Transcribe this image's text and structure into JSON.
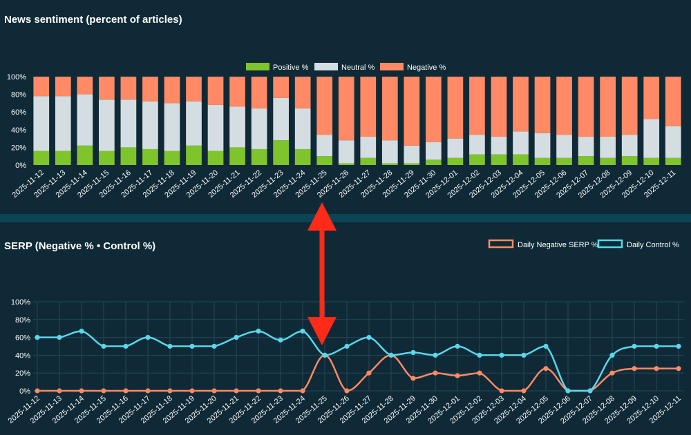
{
  "chart_data": [
    {
      "type": "bar",
      "stacked": true,
      "title": "News sentiment (percent of articles)",
      "categories": [
        "2025-11-12",
        "2025-11-13",
        "2025-11-14",
        "2025-11-15",
        "2025-11-16",
        "2025-11-17",
        "2025-11-18",
        "2025-11-19",
        "2025-11-20",
        "2025-11-21",
        "2025-11-22",
        "2025-11-23",
        "2025-11-24",
        "2025-11-25",
        "2025-11-26",
        "2025-11-27",
        "2025-11-28",
        "2025-11-29",
        "2025-11-30",
        "2025-12-01",
        "2025-12-02",
        "2025-12-03",
        "2025-12-04",
        "2025-12-05",
        "2025-12-06",
        "2025-12-07",
        "2025-12-08",
        "2025-12-09",
        "2025-12-10",
        "2025-12-11"
      ],
      "series": [
        {
          "name": "Positive %",
          "color": "#7ec42a",
          "values": [
            16,
            16,
            22,
            16,
            20,
            18,
            16,
            22,
            16,
            20,
            18,
            28,
            18,
            10,
            2,
            8,
            2,
            2,
            6,
            8,
            12,
            12,
            12,
            8,
            8,
            10,
            8,
            10,
            8,
            8
          ]
        },
        {
          "name": "Neutral %",
          "color": "#d3dde2",
          "values": [
            62,
            62,
            58,
            58,
            54,
            54,
            54,
            50,
            52,
            46,
            46,
            48,
            46,
            24,
            26,
            24,
            26,
            20,
            20,
            22,
            22,
            20,
            26,
            28,
            26,
            22,
            24,
            24,
            44,
            36
          ]
        },
        {
          "name": "Negative %",
          "color": "#ff8a65",
          "values": [
            22,
            22,
            20,
            26,
            26,
            28,
            30,
            28,
            32,
            34,
            36,
            24,
            36,
            66,
            72,
            68,
            72,
            78,
            74,
            70,
            66,
            68,
            62,
            64,
            66,
            68,
            68,
            66,
            48,
            56
          ]
        }
      ],
      "ylim": [
        0,
        100
      ],
      "yticks": [
        "0%",
        "20%",
        "40%",
        "60%",
        "80%",
        "100%"
      ],
      "legend": "top-center",
      "grid": false
    },
    {
      "type": "line",
      "title": "SERP (Negative % • Control %)",
      "categories": [
        "2025-11-12",
        "2025-11-13",
        "2025-11-14",
        "2025-11-15",
        "2025-11-16",
        "2025-11-17",
        "2025-11-18",
        "2025-11-19",
        "2025-11-20",
        "2025-11-21",
        "2025-11-22",
        "2025-11-23",
        "2025-11-24",
        "2025-11-25",
        "2025-11-26",
        "2025-11-27",
        "2025-11-28",
        "2025-11-29",
        "2025-11-30",
        "2025-12-01",
        "2025-12-02",
        "2025-12-03",
        "2025-12-04",
        "2025-12-05",
        "2025-12-06",
        "2025-12-07",
        "2025-12-08",
        "2025-12-09",
        "2025-12-10",
        "2025-12-11"
      ],
      "series": [
        {
          "name": "Daily Negative SERP %",
          "color": "#ff8a65",
          "values": [
            0,
            0,
            0,
            0,
            0,
            0,
            0,
            0,
            0,
            0,
            0,
            0,
            0,
            40,
            0,
            20,
            40,
            14,
            20,
            17,
            20,
            0,
            0,
            25,
            0,
            0,
            20,
            25,
            25,
            25
          ]
        },
        {
          "name": "Daily Control %",
          "color": "#5ad7ec",
          "values": [
            60,
            60,
            67,
            50,
            50,
            60,
            50,
            50,
            50,
            60,
            67,
            57,
            67,
            40,
            50,
            60,
            40,
            43,
            40,
            50,
            40,
            40,
            40,
            50,
            0,
            0,
            40,
            50,
            50,
            50
          ]
        }
      ],
      "ylim": [
        0,
        100
      ],
      "yticks": [
        "0%",
        "20%",
        "40%",
        "60%",
        "80%",
        "100%"
      ],
      "legend": "top-right",
      "grid": true
    }
  ],
  "annotation": {
    "type": "double-headed-arrow",
    "color": "#ff2a17",
    "at_category": "2025-11-25"
  }
}
